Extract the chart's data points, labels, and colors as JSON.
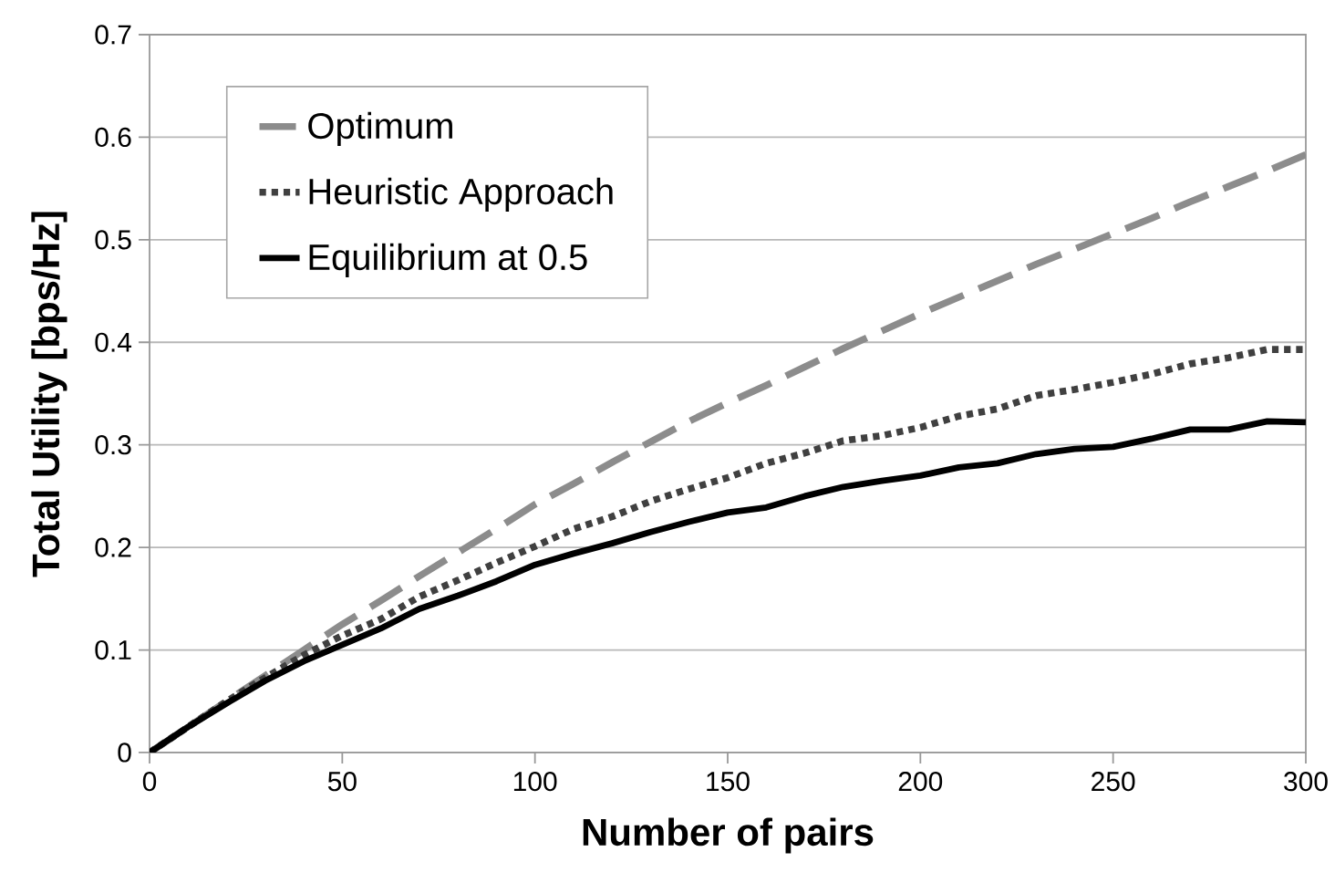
{
  "chart_data": {
    "type": "line",
    "xlabel": "Number of pairs",
    "ylabel": "Total Utility [bps/Hz]",
    "x": [
      0,
      10,
      20,
      30,
      40,
      50,
      60,
      70,
      80,
      90,
      100,
      110,
      120,
      130,
      140,
      150,
      160,
      170,
      180,
      190,
      200,
      210,
      220,
      230,
      240,
      250,
      260,
      270,
      280,
      290,
      300
    ],
    "series": [
      {
        "name": "Optimum",
        "color": "#8c8c8c",
        "line_style": "dashed",
        "values": [
          0,
          0.025,
          0.05,
          0.075,
          0.1,
          0.125,
          0.148,
          0.172,
          0.195,
          0.218,
          0.242,
          0.262,
          0.283,
          0.303,
          0.323,
          0.341,
          0.358,
          0.376,
          0.394,
          0.411,
          0.428,
          0.444,
          0.46,
          0.476,
          0.491,
          0.506,
          0.521,
          0.537,
          0.552,
          0.567,
          0.583
        ]
      },
      {
        "name": "Heuristic Approach",
        "color": "#404040",
        "line_style": "dotted",
        "values": [
          0,
          0.025,
          0.05,
          0.073,
          0.095,
          0.114,
          0.13,
          0.152,
          0.168,
          0.185,
          0.201,
          0.218,
          0.23,
          0.245,
          0.257,
          0.268,
          0.282,
          0.292,
          0.304,
          0.309,
          0.317,
          0.328,
          0.335,
          0.348,
          0.354,
          0.361,
          0.369,
          0.379,
          0.385,
          0.393,
          0.393
        ]
      },
      {
        "name": "Equilibrium at 0.5",
        "color": "#000000",
        "line_style": "solid",
        "values": [
          0,
          0.025,
          0.048,
          0.07,
          0.089,
          0.105,
          0.121,
          0.14,
          0.153,
          0.167,
          0.183,
          0.194,
          0.204,
          0.215,
          0.225,
          0.234,
          0.239,
          0.25,
          0.259,
          0.265,
          0.27,
          0.278,
          0.282,
          0.291,
          0.296,
          0.298,
          0.306,
          0.315,
          0.315,
          0.323,
          0.322
        ]
      }
    ],
    "xlim": [
      0,
      300
    ],
    "ylim": [
      0,
      0.7
    ],
    "xticks": [
      0,
      50,
      100,
      150,
      200,
      250,
      300
    ],
    "yticks": [
      0,
      0.1,
      0.2,
      0.3,
      0.4,
      0.5,
      0.6,
      0.7
    ],
    "grid": "y",
    "legend": "top left"
  }
}
